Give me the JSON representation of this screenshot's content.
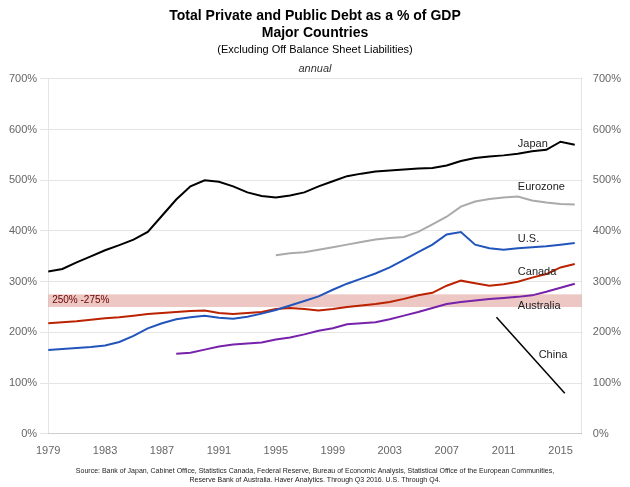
{
  "chart_data": {
    "type": "line",
    "title": [
      "Total Private and Public Debt as a % of GDP",
      "Major Countries"
    ],
    "subtitle": "(Excluding Off Balance Sheet Liabilities)",
    "annotation": "annual",
    "source": "Source: Bank of Japan, Cabinet Office, Statistics Canada, Federal Reserve, Bureau of Economic Analysis, Statistical Office of the European Communities,\nReserve Bank of Australia. Haver Analytics. Through Q3 2016. U.S. Through Q4.",
    "xlim": [
      1979,
      2016.5
    ],
    "xticks": [
      1979,
      1983,
      1987,
      1991,
      1995,
      1999,
      2003,
      2007,
      2011,
      2015
    ],
    "ylim": [
      0,
      700
    ],
    "yticks": [
      {
        "value": 0,
        "label": "0%"
      },
      {
        "value": 100,
        "label": "100%"
      },
      {
        "value": 200,
        "label": "200%"
      },
      {
        "value": 300,
        "label": "300%"
      },
      {
        "value": 400,
        "label": "400%"
      },
      {
        "value": 500,
        "label": "500%"
      },
      {
        "value": 600,
        "label": "600%"
      },
      {
        "value": 700,
        "label": "700%"
      }
    ],
    "y2lim": [
      0,
      700
    ],
    "y2ticks": [
      {
        "value": 0,
        "label": "0%"
      },
      {
        "value": 100,
        "label": "100%"
      },
      {
        "value": 200,
        "label": "200%"
      },
      {
        "value": 300,
        "label": "300%"
      },
      {
        "value": 400,
        "label": "400%"
      },
      {
        "value": 500,
        "label": "500%"
      },
      {
        "value": 600,
        "label": "600%"
      },
      {
        "value": 700,
        "label": "700%"
      }
    ],
    "grid": "y",
    "bands": [
      {
        "y_low": 250,
        "y_high": 275,
        "label": "250% -275%",
        "color": "#d4827a"
      }
    ],
    "series": [
      {
        "name": "Japan",
        "color": "#000000",
        "x": [
          1979,
          1980,
          1981,
          1982,
          1983,
          1984,
          1985,
          1986,
          1987,
          1988,
          1989,
          1990,
          1991,
          1992,
          1993,
          1994,
          1995,
          1996,
          1997,
          1998,
          1999,
          2000,
          2001,
          2002,
          2003,
          2004,
          2005,
          2006,
          2007,
          2008,
          2009,
          2010,
          2011,
          2012,
          2013,
          2014,
          2015,
          2016
        ],
        "values": [
          320,
          325,
          338,
          350,
          362,
          372,
          383,
          398,
          430,
          462,
          488,
          500,
          497,
          488,
          476,
          469,
          466,
          470,
          476,
          488,
          498,
          508,
          513,
          517,
          519,
          521,
          523,
          524,
          529,
          538,
          544,
          547,
          549,
          552,
          557,
          560,
          576,
          570
        ]
      },
      {
        "name": "U.S.",
        "color": "#2255bb",
        "x": [
          1979,
          1980,
          1981,
          1982,
          1983,
          1984,
          1985,
          1986,
          1987,
          1988,
          1989,
          1990,
          1991,
          1992,
          1993,
          1994,
          1995,
          1996,
          1997,
          1998,
          1999,
          2000,
          2001,
          2002,
          2003,
          2004,
          2005,
          2006,
          2007,
          2008,
          2009,
          2010,
          2011,
          2012,
          2013,
          2014,
          2015,
          2016
        ],
        "values": [
          165,
          167,
          169,
          171,
          174,
          181,
          193,
          208,
          218,
          226,
          230,
          233,
          229,
          227,
          231,
          237,
          244,
          253,
          262,
          271,
          284,
          296,
          306,
          316,
          328,
          343,
          358,
          373,
          393,
          398,
          373,
          366,
          363,
          366,
          368,
          370,
          373,
          376
        ]
      },
      {
        "name": "Eurozone",
        "color": "#aaaaaa",
        "x": [
          1995,
          1996,
          1997,
          1998,
          1999,
          2000,
          2001,
          2002,
          2003,
          2004,
          2005,
          2006,
          2007,
          2008,
          2009,
          2010,
          2011,
          2012,
          2013,
          2014,
          2015,
          2016
        ],
        "values": [
          352,
          356,
          358,
          363,
          368,
          373,
          378,
          383,
          386,
          388,
          398,
          413,
          428,
          448,
          458,
          463,
          466,
          468,
          460,
          456,
          453,
          452
        ]
      },
      {
        "name": "Canada",
        "color": "#bb2200",
        "x": [
          1979,
          1980,
          1981,
          1982,
          1983,
          1984,
          1985,
          1986,
          1987,
          1988,
          1989,
          1990,
          1991,
          1992,
          1993,
          1994,
          1995,
          1996,
          1997,
          1998,
          1999,
          2000,
          2001,
          2002,
          2003,
          2004,
          2005,
          2006,
          2007,
          2008,
          2009,
          2010,
          2011,
          2012,
          2013,
          2014,
          2015,
          2016
        ],
        "values": [
          218,
          220,
          222,
          225,
          228,
          230,
          233,
          236,
          238,
          240,
          242,
          243,
          238,
          236,
          238,
          240,
          246,
          248,
          246,
          243,
          246,
          250,
          253,
          256,
          260,
          266,
          273,
          278,
          292,
          302,
          297,
          292,
          295,
          300,
          308,
          315,
          328,
          335
        ]
      },
      {
        "name": "Australia",
        "color": "#7722aa",
        "x": [
          1988,
          1989,
          1990,
          1991,
          1992,
          1993,
          1994,
          1995,
          1996,
          1997,
          1998,
          1999,
          2000,
          2001,
          2002,
          2003,
          2004,
          2005,
          2006,
          2007,
          2008,
          2009,
          2010,
          2011,
          2012,
          2013,
          2014,
          2015,
          2016
        ],
        "values": [
          158,
          160,
          166,
          172,
          176,
          178,
          180,
          186,
          190,
          196,
          203,
          208,
          216,
          218,
          220,
          226,
          233,
          240,
          248,
          256,
          260,
          263,
          266,
          268,
          270,
          273,
          280,
          288,
          296
        ]
      },
      {
        "name": "China",
        "color": "#000000",
        "x": [
          2015.3,
          2010.5
        ],
        "values": [
          80,
          230
        ]
      }
    ]
  }
}
